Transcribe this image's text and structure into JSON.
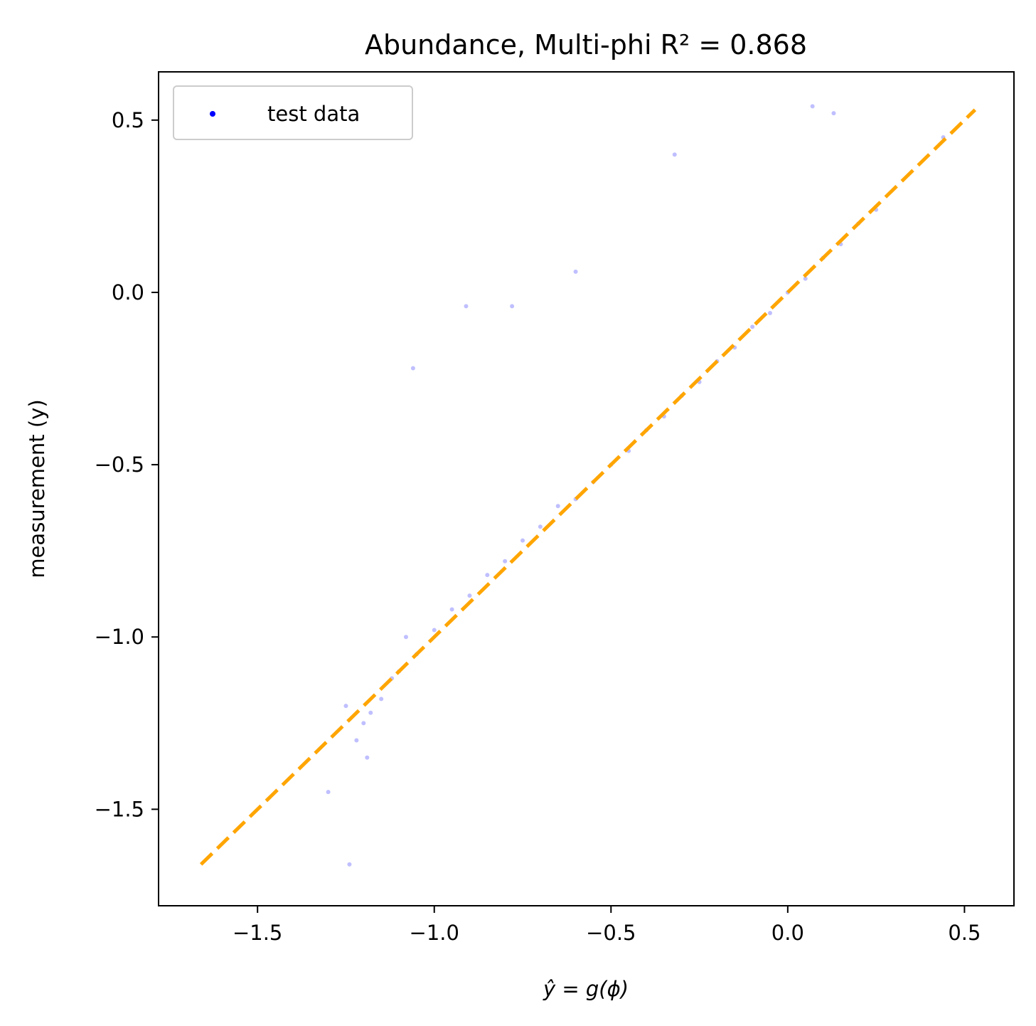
{
  "chart_data": {
    "type": "scatter",
    "title": "Abundance, Multi-phi R² = 0.868",
    "xlabel": "ŷ = g(ϕ)",
    "ylabel": "measurement (y)",
    "xlim": [
      -1.78,
      0.64
    ],
    "ylim": [
      -1.78,
      0.64
    ],
    "xticks": [
      -1.5,
      -1.0,
      -0.5,
      0.0,
      0.5
    ],
    "yticks": [
      -1.5,
      -1.0,
      -0.5,
      0.0,
      0.5
    ],
    "xtick_labels": [
      "−1.5",
      "−1.0",
      "−0.5",
      "0.0",
      "0.5"
    ],
    "ytick_labels": [
      "−1.5",
      "−1.0",
      "−0.5",
      "0.0",
      "0.5"
    ],
    "grid": false,
    "legend": {
      "position": "top-left",
      "entries": [
        "test data"
      ]
    },
    "series": [
      {
        "name": "test data",
        "color": "#0000ff",
        "alpha": 0.25,
        "x": [
          -1.2,
          -1.18,
          -1.15,
          -1.22,
          -1.1,
          -1.05,
          -1.25,
          -1.12,
          -1.08,
          -1.19,
          -1.0,
          -0.95,
          -0.9,
          -0.85,
          -0.8,
          -0.75,
          -0.7,
          -0.65,
          -0.6,
          -0.55,
          -0.5,
          -0.45,
          -0.4,
          -0.35,
          -0.3,
          -0.25,
          -0.2,
          -0.15,
          -0.1,
          -0.05,
          0.0,
          0.05,
          0.1,
          0.15,
          0.2,
          0.25,
          -1.06,
          -0.78,
          -0.91,
          0.44,
          0.07,
          -1.3,
          -1.24,
          -0.6,
          -0.32,
          0.13
        ],
        "y": [
          -1.25,
          -1.22,
          -1.18,
          -1.3,
          -1.1,
          -1.05,
          -1.2,
          -1.12,
          -1.0,
          -1.35,
          -0.98,
          -0.92,
          -0.88,
          -0.82,
          -0.78,
          -0.72,
          -0.68,
          -0.62,
          -0.6,
          -0.55,
          -0.5,
          -0.46,
          -0.4,
          -0.36,
          -0.3,
          -0.26,
          -0.2,
          -0.16,
          -0.1,
          -0.06,
          0.0,
          0.04,
          0.1,
          0.14,
          0.2,
          0.24,
          -0.22,
          -0.04,
          -0.04,
          0.45,
          0.54,
          -1.45,
          -1.66,
          0.06,
          0.4,
          0.52
        ]
      },
      {
        "name": "",
        "type": "line",
        "style": "dashed",
        "color": "#ffa500",
        "x": [
          -1.66,
          0.53
        ],
        "y": [
          -1.66,
          0.53
        ]
      }
    ]
  }
}
